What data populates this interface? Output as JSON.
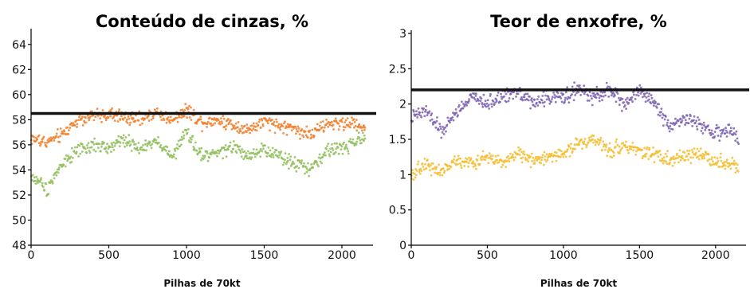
{
  "chart_data": [
    {
      "type": "scatter",
      "title": "Conteúdo de cinzas, %",
      "xlabel": "Pilhas de 70kt",
      "ylabel": "",
      "xlim": [
        0,
        2200
      ],
      "ylim": [
        48,
        65
      ],
      "xticks": [
        0,
        500,
        1000,
        1500,
        2000
      ],
      "yticks": [
        48,
        50,
        52,
        54,
        56,
        58,
        60,
        62,
        64
      ],
      "reference_line": 58.5,
      "series": [
        {
          "color": "#f07f2b",
          "x": [
            0,
            100,
            200,
            300,
            400,
            500,
            600,
            700,
            800,
            900,
            1000,
            1100,
            1200,
            1300,
            1400,
            1500,
            1600,
            1700,
            1800,
            1900,
            2000,
            2100,
            2150
          ],
          "y": [
            56.5,
            56.2,
            56.8,
            58.0,
            58.3,
            58.4,
            58.2,
            58.0,
            58.6,
            58.0,
            58.8,
            57.8,
            58.0,
            57.6,
            57.2,
            57.8,
            57.5,
            57.3,
            56.8,
            57.6,
            57.8,
            57.6,
            57.4
          ]
        },
        {
          "color": "#8fbe5a",
          "x": [
            0,
            100,
            200,
            300,
            400,
            500,
            600,
            700,
            800,
            900,
            1000,
            1100,
            1200,
            1300,
            1400,
            1500,
            1600,
            1700,
            1800,
            1900,
            2000,
            2100,
            2150
          ],
          "y": [
            53.5,
            52.5,
            54.5,
            55.5,
            56.0,
            55.8,
            56.5,
            55.5,
            56.5,
            55.0,
            57.0,
            55.0,
            55.5,
            55.8,
            55.0,
            55.5,
            55.2,
            54.5,
            54.0,
            55.5,
            55.8,
            56.3,
            56.5
          ]
        }
      ]
    },
    {
      "type": "scatter",
      "title": "Teor de enxofre, %",
      "xlabel": "Pilhas de 70kt",
      "ylabel": "",
      "xlim": [
        0,
        2200
      ],
      "ylim": [
        0,
        3
      ],
      "xticks": [
        0,
        500,
        1000,
        1500,
        2000
      ],
      "yticks": [
        0,
        0.5,
        1,
        1.5,
        2,
        2.5,
        3
      ],
      "reference_line": 2.2,
      "series": [
        {
          "color": "#7b62b0",
          "x": [
            0,
            100,
            200,
            300,
            400,
            500,
            600,
            700,
            800,
            900,
            1000,
            1100,
            1200,
            1300,
            1400,
            1500,
            1600,
            1700,
            1800,
            1900,
            2000,
            2100,
            2150
          ],
          "y": [
            1.8,
            1.9,
            1.6,
            1.9,
            2.1,
            2.0,
            2.1,
            2.2,
            2.0,
            2.1,
            2.1,
            2.2,
            2.1,
            2.2,
            2.0,
            2.2,
            2.0,
            1.7,
            1.8,
            1.7,
            1.6,
            1.6,
            1.5
          ]
        },
        {
          "color": "#f4bd2f",
          "x": [
            0,
            100,
            200,
            300,
            400,
            500,
            600,
            700,
            800,
            900,
            1000,
            1100,
            1200,
            1300,
            1400,
            1500,
            1600,
            1700,
            1800,
            1900,
            2000,
            2100,
            2150
          ],
          "y": [
            1.0,
            1.15,
            1.05,
            1.2,
            1.15,
            1.25,
            1.2,
            1.3,
            1.2,
            1.25,
            1.3,
            1.45,
            1.5,
            1.35,
            1.4,
            1.35,
            1.3,
            1.2,
            1.25,
            1.3,
            1.2,
            1.15,
            1.1
          ]
        }
      ]
    }
  ]
}
